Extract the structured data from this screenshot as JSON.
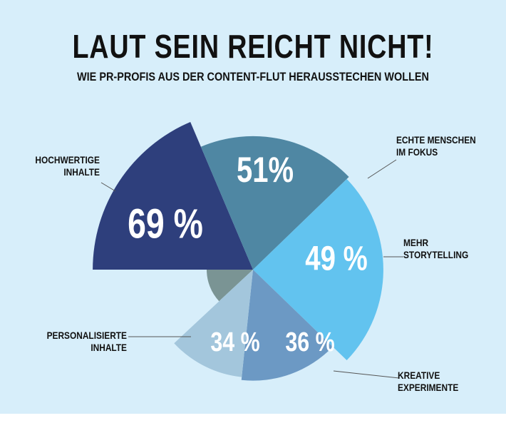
{
  "chart_data": {
    "type": "polar_area",
    "title": "LAUT SEIN REICHT NICHT!",
    "subtitle": "WIE PR-PROFIS AUS DER CONTENT-FLUT HERAUSSTECHEN WOLLEN",
    "categories": [
      "HOCHWERTIGE INHALTE",
      "ECHTE MENSCHEN IM FOKUS",
      "MEHR STORYTELLING",
      "KREATIVE EXPERIMENTE",
      "PERSONALISIERTE INHALTE"
    ],
    "values": [
      69,
      51,
      49,
      36,
      34
    ],
    "value_labels": [
      "69 %",
      "51%",
      "49 %",
      "36 %",
      "34 %"
    ],
    "colors": [
      "#2e3f7c",
      "#4f87a3",
      "#62c3ef",
      "#6c99c4",
      "#a3c6dc"
    ]
  }
}
